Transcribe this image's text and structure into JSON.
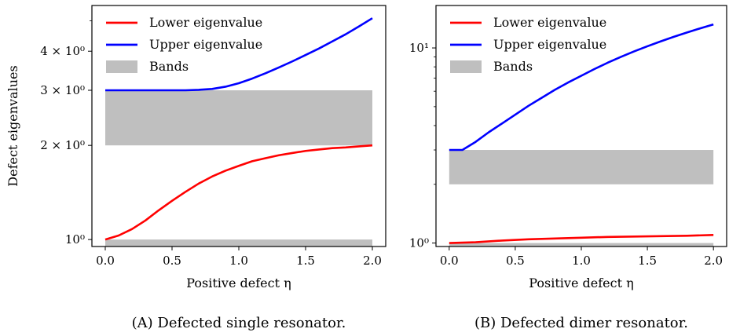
{
  "chart_data": [
    {
      "type": "line",
      "caption": "(A) Defected single resonator.",
      "xlabel": "Positive defect η",
      "ylabel": "Defect eigenvalues",
      "xlim": [
        -0.1,
        2.1
      ],
      "ylim": [
        0.95,
        5.6
      ],
      "yscale": "log",
      "xticks": [
        0.0,
        0.5,
        1.0,
        1.5,
        2.0
      ],
      "xtick_labels": [
        "0.0",
        "0.5",
        "1.0",
        "1.5",
        "2.0"
      ],
      "yticks": [
        1,
        2,
        3,
        4
      ],
      "ytick_labels": [
        "10⁰",
        "2 × 10⁰",
        "3 × 10⁰",
        "4 × 10⁰"
      ],
      "legend_position": "top-left",
      "legend": [
        "Lower eigenvalue",
        "Upper eigenvalue",
        "Bands"
      ],
      "bands": [
        [
          0.95,
          1.0
        ],
        [
          2.0,
          3.0
        ]
      ],
      "band_x": [
        0.0,
        2.0
      ],
      "series": [
        {
          "name": "Lower eigenvalue",
          "color": "#ff0000",
          "x": [
            0.0,
            0.1,
            0.2,
            0.3,
            0.4,
            0.5,
            0.6,
            0.7,
            0.8,
            0.9,
            1.0,
            1.1,
            1.2,
            1.3,
            1.4,
            1.5,
            1.6,
            1.7,
            1.8,
            1.9,
            2.0
          ],
          "y": [
            1.0,
            1.03,
            1.08,
            1.15,
            1.24,
            1.33,
            1.42,
            1.51,
            1.59,
            1.66,
            1.72,
            1.78,
            1.82,
            1.86,
            1.89,
            1.92,
            1.94,
            1.96,
            1.97,
            1.985,
            2.0
          ]
        },
        {
          "name": "Upper eigenvalue",
          "color": "#0000ff",
          "x": [
            0.0,
            0.1,
            0.2,
            0.3,
            0.4,
            0.5,
            0.6,
            0.7,
            0.8,
            0.9,
            1.0,
            1.1,
            1.2,
            1.3,
            1.4,
            1.5,
            1.6,
            1.7,
            1.8,
            1.9,
            2.0
          ],
          "y": [
            3.0,
            3.0,
            3.0,
            3.0,
            3.0,
            3.0,
            3.0,
            3.01,
            3.03,
            3.08,
            3.16,
            3.27,
            3.4,
            3.55,
            3.71,
            3.89,
            4.08,
            4.3,
            4.53,
            4.8,
            5.1
          ]
        }
      ]
    },
    {
      "type": "line",
      "caption": "(B) Defected dimer resonator.",
      "xlabel": "Positive defect η",
      "ylabel": "",
      "xlim": [
        -0.1,
        2.1
      ],
      "ylim": [
        0.96,
        16.5
      ],
      "yscale": "log",
      "xticks": [
        0.0,
        0.5,
        1.0,
        1.5,
        2.0
      ],
      "xtick_labels": [
        "0.0",
        "0.5",
        "1.0",
        "1.5",
        "2.0"
      ],
      "yticks": [
        1,
        10
      ],
      "ytick_labels": [
        "10⁰",
        "10¹"
      ],
      "legend_position": "top-left",
      "legend": [
        "Lower eigenvalue",
        "Upper eigenvalue",
        "Bands"
      ],
      "bands": [
        [
          0.96,
          1.0
        ],
        [
          2.0,
          3.0
        ]
      ],
      "band_x": [
        0.0,
        2.0
      ],
      "series": [
        {
          "name": "Lower eigenvalue",
          "color": "#ff0000",
          "x": [
            0.0,
            0.2,
            0.4,
            0.6,
            0.8,
            1.0,
            1.2,
            1.4,
            1.6,
            1.8,
            2.0
          ],
          "y": [
            1.0,
            1.01,
            1.03,
            1.045,
            1.055,
            1.065,
            1.075,
            1.08,
            1.085,
            1.09,
            1.1
          ]
        },
        {
          "name": "Upper eigenvalue",
          "color": "#0000ff",
          "x": [
            0.0,
            0.1,
            0.2,
            0.3,
            0.4,
            0.5,
            0.6,
            0.7,
            0.8,
            0.9,
            1.0,
            1.1,
            1.2,
            1.3,
            1.4,
            1.5,
            1.6,
            1.7,
            1.8,
            1.9,
            2.0
          ],
          "y": [
            3.0,
            3.0,
            3.3,
            3.7,
            4.1,
            4.55,
            5.05,
            5.55,
            6.1,
            6.65,
            7.2,
            7.8,
            8.4,
            9.0,
            9.6,
            10.2,
            10.8,
            11.4,
            12.0,
            12.6,
            13.2
          ]
        }
      ]
    }
  ]
}
